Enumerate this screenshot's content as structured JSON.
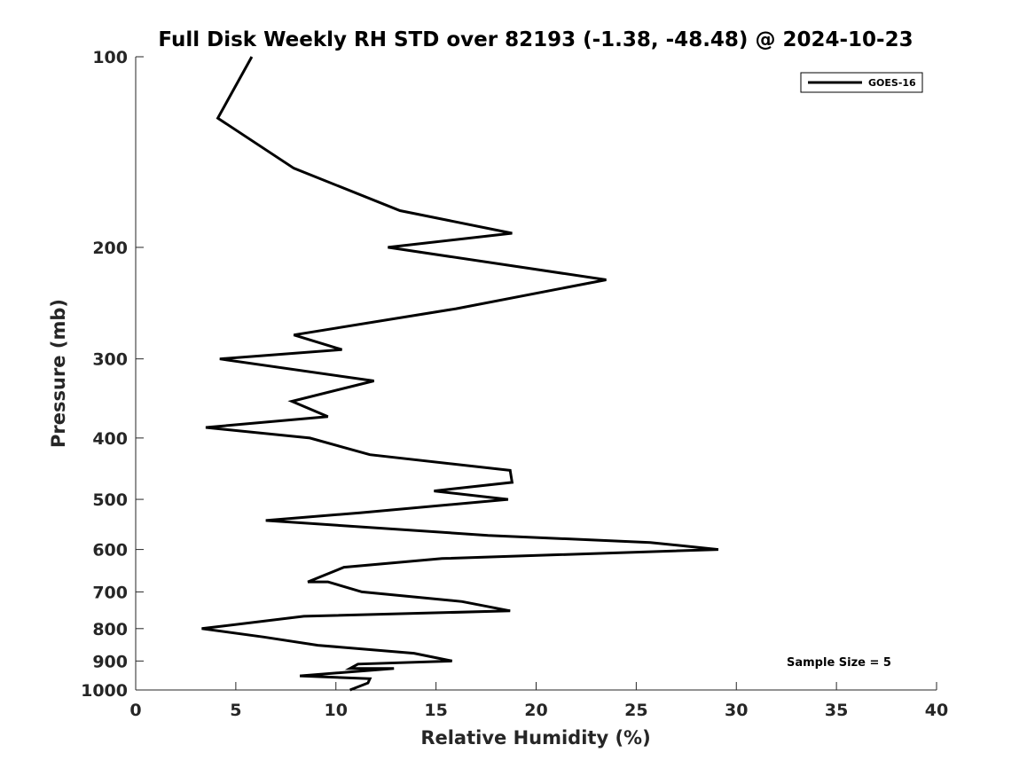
{
  "chart_data": {
    "type": "line",
    "title": "Full Disk Weekly RH STD over 82193 (-1.38, -48.48) @ 2024-10-23",
    "xlabel": "Relative Humidity (%)",
    "ylabel": "Pressure (mb)",
    "xlim": [
      0,
      40
    ],
    "ylim": [
      100,
      1000
    ],
    "yscale": "log",
    "reverse_y": true,
    "x_ticks": [
      0,
      5,
      10,
      15,
      20,
      25,
      30,
      35,
      40
    ],
    "x_tick_labels": [
      "0",
      "5",
      "10",
      "15",
      "20",
      "25",
      "30",
      "35",
      "40"
    ],
    "y_ticks": [
      100,
      200,
      300,
      400,
      500,
      600,
      700,
      800,
      900,
      1000
    ],
    "y_tick_labels": [
      "100",
      "200",
      "300",
      "400",
      "500",
      "600",
      "700",
      "800",
      "900",
      "1000"
    ],
    "grid": false,
    "legend_position": "top-right",
    "annotation": "Sample Size = 5",
    "series": [
      {
        "name": "GOES-16",
        "color": "#000000",
        "x": [
          5.8,
          4.1,
          7.9,
          13.2,
          18.8,
          12.6,
          23.5,
          16.0,
          7.9,
          10.3,
          4.2,
          11.9,
          7.8,
          9.6,
          3.5,
          8.7,
          11.7,
          18.7,
          18.8,
          14.9,
          18.6,
          11.2,
          6.5,
          17.6,
          25.7,
          29.1,
          15.3,
          10.4,
          8.6,
          9.6,
          11.3,
          16.3,
          18.7,
          8.4,
          3.3,
          6.4,
          9.1,
          13.9,
          15.8,
          11.1,
          10.7,
          12.9,
          8.2,
          11.7,
          11.6,
          10.7
        ],
        "y": [
          100,
          125,
          150,
          175,
          190,
          200,
          225,
          250,
          275,
          290,
          300,
          325,
          350,
          370,
          385,
          400,
          425,
          450,
          470,
          485,
          500,
          525,
          540,
          570,
          585,
          600,
          620,
          640,
          675,
          675,
          700,
          725,
          750,
          765,
          800,
          825,
          850,
          875,
          900,
          910,
          925,
          925,
          950,
          960,
          975,
          1000
        ]
      }
    ]
  }
}
